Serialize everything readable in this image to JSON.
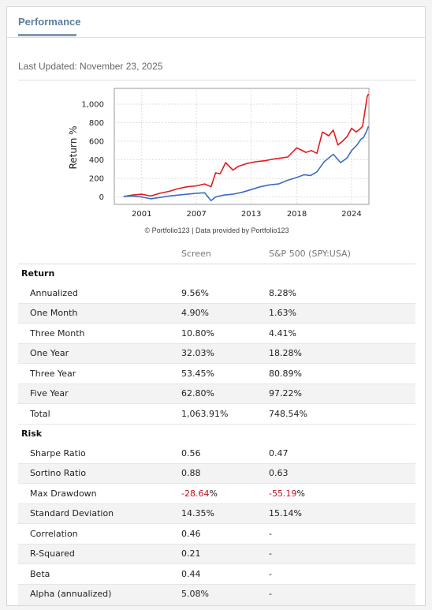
{
  "panel": {
    "title": "Performance"
  },
  "last_updated": "Last Updated: November 23, 2025",
  "credit": "© Portfolio123 | Data provided by Portfolio123",
  "colors": {
    "screen_line": "#e31a1c",
    "benchmark_line": "#3a6cc6",
    "title": "#5d7e9c",
    "negative": "#c0121e"
  },
  "chart_data": {
    "type": "line",
    "ylabel": "Return %",
    "yticks": [
      "1,000",
      "800",
      "600",
      "400",
      "200",
      "0"
    ],
    "ytick_values": [
      1000,
      800,
      600,
      400,
      200,
      0
    ],
    "xticks": [
      "2001",
      "2007",
      "2013",
      "2018",
      "2024"
    ],
    "xtick_values": [
      2001,
      2007,
      2013,
      2018,
      2024
    ],
    "xlim": [
      1998.0,
      2025.9
    ],
    "ylim": [
      -80,
      1170
    ],
    "grid": true,
    "series": [
      {
        "color": "#e31a1c",
        "x": [
          1999.0,
          2000.0,
          2001.0,
          2002.0,
          2003.0,
          2004.0,
          2005.0,
          2006.0,
          2007.0,
          2007.9,
          2008.6,
          2009.1,
          2009.6,
          2010.2,
          2011.0,
          2011.6,
          2012.5,
          2013.5,
          2014.5,
          2015.5,
          2016.3,
          2017.0,
          2018.0,
          2019.0,
          2019.6,
          2020.2,
          2020.8,
          2021.5,
          2022.0,
          2022.5,
          2023.0,
          2023.5,
          2024.0,
          2024.5,
          2024.9,
          2025.2,
          2025.5,
          2025.7,
          2025.85
        ],
        "y": [
          5,
          20,
          30,
          10,
          40,
          60,
          90,
          110,
          120,
          140,
          110,
          260,
          250,
          370,
          290,
          330,
          360,
          380,
          390,
          410,
          420,
          430,
          530,
          480,
          500,
          470,
          700,
          660,
          720,
          560,
          600,
          650,
          740,
          700,
          730,
          760,
          950,
          1080,
          1110
        ]
      },
      {
        "color": "#3a6cc6",
        "x": [
          1999.0,
          2000.0,
          2001.0,
          2002.0,
          2003.0,
          2004.0,
          2005.0,
          2006.0,
          2007.0,
          2007.9,
          2008.6,
          2009.1,
          2010.0,
          2011.0,
          2012.0,
          2013.0,
          2014.0,
          2015.0,
          2016.0,
          2017.0,
          2018.0,
          2018.8,
          2019.5,
          2020.2,
          2021.0,
          2022.0,
          2022.8,
          2023.5,
          2024.0,
          2024.6,
          2025.0,
          2025.3,
          2025.6,
          2025.85
        ],
        "y": [
          5,
          10,
          0,
          -20,
          -5,
          10,
          20,
          30,
          40,
          45,
          -40,
          0,
          20,
          30,
          50,
          80,
          110,
          130,
          140,
          180,
          210,
          240,
          230,
          270,
          380,
          460,
          370,
          420,
          500,
          560,
          620,
          640,
          700,
          760
        ]
      }
    ]
  },
  "table": {
    "col_headers": [
      "Screen",
      "S&P 500 (SPY:USA)"
    ],
    "sections": [
      {
        "name": "Return",
        "rows": [
          {
            "label": "Annualized",
            "v1": "9.56%",
            "v2": "8.28%"
          },
          {
            "label": "One Month",
            "v1": "4.90%",
            "v2": "1.63%"
          },
          {
            "label": "Three Month",
            "v1": "10.80%",
            "v2": "4.41%"
          },
          {
            "label": "One Year",
            "v1": "32.03%",
            "v2": "18.28%"
          },
          {
            "label": "Three Year",
            "v1": "53.45%",
            "v2": "80.89%"
          },
          {
            "label": "Five Year",
            "v1": "62.80%",
            "v2": "97.22%"
          },
          {
            "label": "Total",
            "v1": "1,063.91%",
            "v2": "748.54%"
          }
        ]
      },
      {
        "name": "Risk",
        "rows": [
          {
            "label": "Sharpe Ratio",
            "v1": "0.56",
            "v2": "0.47"
          },
          {
            "label": "Sortino Ratio",
            "v1": "0.88",
            "v2": "0.63"
          },
          {
            "label": "Max Drawdown",
            "v1_num": "-28.64",
            "v1_unit": "%",
            "v2_num": "-55.19",
            "v2_unit": "%"
          },
          {
            "label": "Standard Deviation",
            "v1": "14.35%",
            "v2": "15.14%"
          },
          {
            "label": "Correlation",
            "v1": "0.46",
            "v2": "-"
          },
          {
            "label": "R-Squared",
            "v1": "0.21",
            "v2": "-"
          },
          {
            "label": "Beta",
            "v1": "0.44",
            "v2": "-"
          },
          {
            "label": "Alpha (annualized)",
            "v1": "5.08%",
            "v2": "-"
          }
        ]
      }
    ]
  }
}
